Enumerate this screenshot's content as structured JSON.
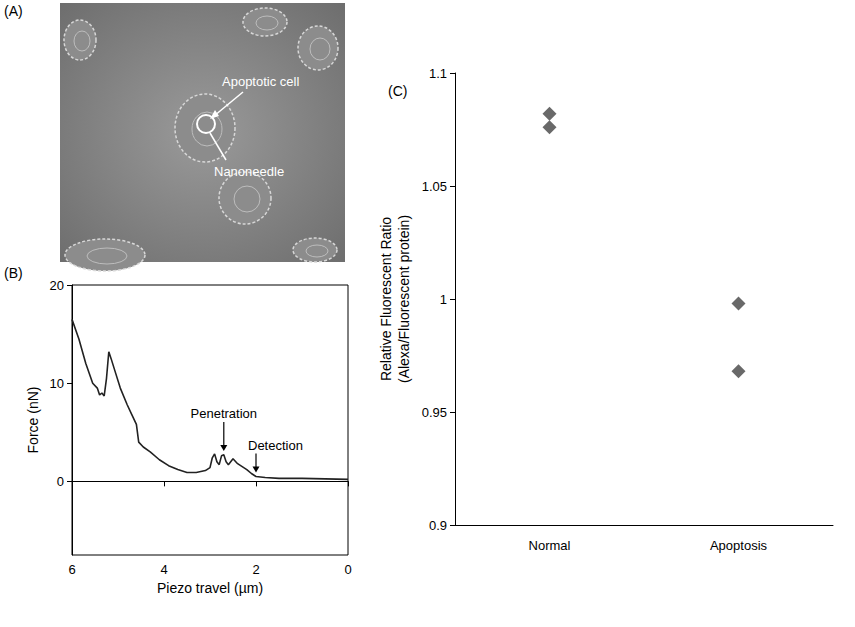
{
  "image_panel": {
    "label": "(A)",
    "annotations": [
      "Apoptotic cell",
      "Nanoneedle"
    ]
  },
  "chart_data": [
    {
      "type": "line",
      "panel_label": "(B)",
      "x_label": "Piezo travel (µm)",
      "y_label": "Force (nN)",
      "x": [
        6.0,
        5.85,
        5.7,
        5.55,
        5.45,
        5.4,
        5.35,
        5.3,
        5.25,
        5.2,
        5.15,
        5.05,
        4.95,
        4.8,
        4.7,
        4.6,
        4.55,
        4.45,
        4.3,
        4.1,
        3.9,
        3.7,
        3.5,
        3.3,
        3.1,
        3.0,
        2.95,
        2.9,
        2.85,
        2.8,
        2.75,
        2.7,
        2.65,
        2.6,
        2.5,
        2.4,
        2.3,
        2.2,
        2.1,
        2.0,
        1.8,
        1.5,
        1.0,
        0.5,
        0.0
      ],
      "values": [
        16.5,
        14.5,
        12.0,
        10.0,
        9.5,
        8.8,
        9.0,
        8.7,
        10.5,
        13.2,
        12.5,
        11.0,
        9.5,
        7.8,
        6.8,
        5.8,
        4.0,
        3.5,
        3.0,
        2.2,
        1.6,
        1.2,
        0.9,
        0.9,
        1.1,
        1.4,
        2.4,
        2.8,
        2.0,
        1.7,
        2.6,
        2.7,
        2.0,
        1.7,
        2.3,
        1.8,
        1.5,
        1.2,
        0.8,
        0.5,
        0.4,
        0.3,
        0.3,
        0.25,
        0.2
      ],
      "xlim": [
        6,
        0
      ],
      "xticks": [
        0,
        2,
        4,
        6
      ],
      "ylim": [
        -7.5,
        20
      ],
      "yticks": [
        0,
        10,
        20
      ],
      "color": "#222222",
      "grid": false,
      "annotations": [
        {
          "text": "Penetration",
          "x": 2.7,
          "y": 3.0
        },
        {
          "text": "Detection",
          "x": 2.0,
          "y": 0.8
        }
      ]
    },
    {
      "type": "scatter",
      "panel_label": "(C)",
      "y_label": "Relative Fluorescent Ratio (Alexa/Fluorescent protein)",
      "categories": [
        "Normal",
        "Apoptosis"
      ],
      "values": [
        [
          1.082,
          1.076
        ],
        [
          0.998,
          0.968
        ]
      ],
      "ylim": [
        0.9,
        1.1
      ],
      "yticks": [
        0.9,
        0.95,
        1,
        1.05,
        1.1
      ],
      "color": "#444444",
      "marker": "diamond",
      "grid": false
    }
  ]
}
